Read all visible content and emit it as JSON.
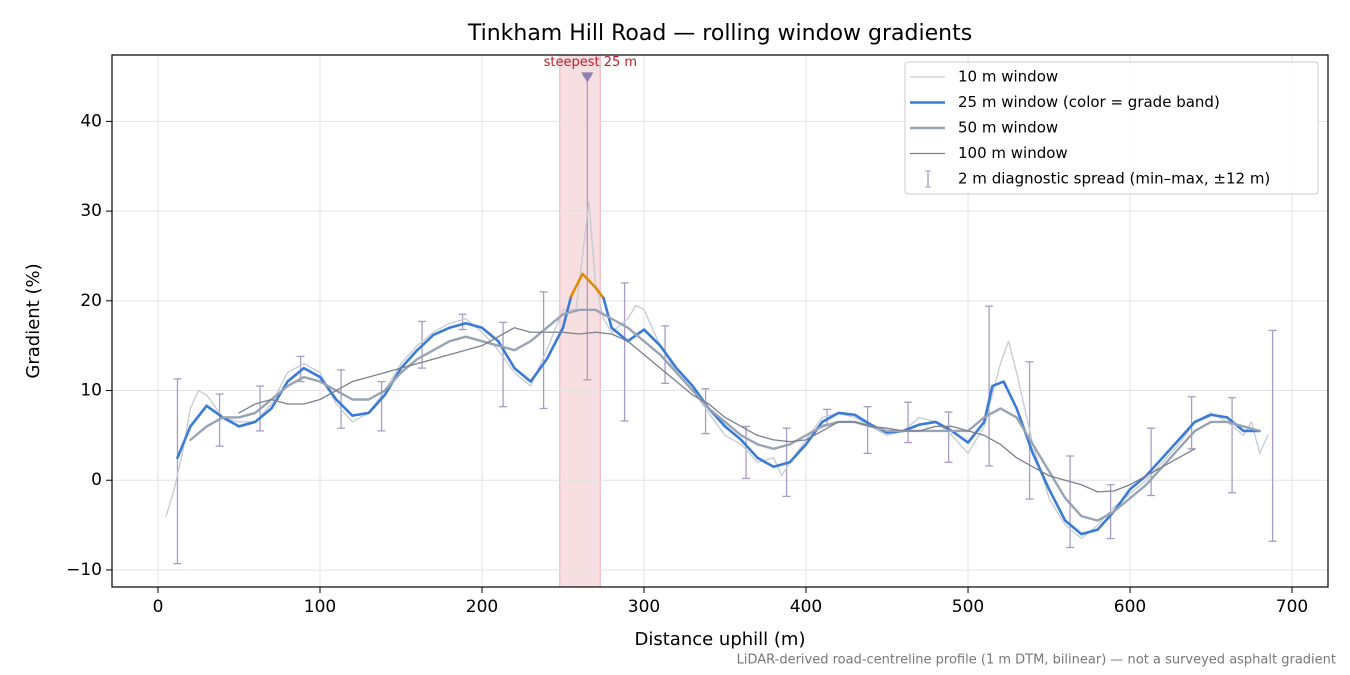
{
  "chart_data": {
    "type": "line",
    "title": "Tinkham Hill Road — rolling window gradients",
    "xlabel": "Distance uphill (m)",
    "ylabel": "Gradient (%)",
    "footnote": "LiDAR-derived road-centreline profile (1 m DTM, bilinear) — not a surveyed asphalt gradient",
    "xlim": [
      -28.4,
      722.2
    ],
    "ylim": [
      -11.9,
      47.4
    ],
    "xticks": [
      0,
      100,
      200,
      300,
      400,
      500,
      600,
      700
    ],
    "yticks": [
      {
        "value": -10,
        "label": "−10"
      },
      0,
      10,
      20,
      30,
      40
    ],
    "grid": true,
    "legend": "upper right",
    "span": {
      "from": 248,
      "to": 273,
      "color": "#e8a0a8"
    },
    "annotation": {
      "text": "steepest 25 m",
      "x": 265,
      "y": 44.8,
      "color": "#c0202a"
    },
    "series": [
      {
        "name": "10 m window",
        "color": "#c5cbd3",
        "width": 1.3,
        "x": [
          5,
          10,
          15,
          20,
          25,
          30,
          40,
          50,
          60,
          70,
          80,
          90,
          100,
          110,
          120,
          130,
          140,
          150,
          160,
          170,
          180,
          190,
          200,
          210,
          220,
          230,
          240,
          250,
          258,
          262,
          266,
          270,
          275,
          280,
          290,
          295,
          300,
          310,
          320,
          330,
          340,
          350,
          360,
          370,
          380,
          385,
          390,
          400,
          410,
          420,
          430,
          440,
          450,
          460,
          470,
          480,
          490,
          500,
          510,
          520,
          525,
          530,
          540,
          550,
          560,
          570,
          580,
          590,
          600,
          610,
          620,
          630,
          640,
          650,
          660,
          670,
          675,
          680,
          685
        ],
        "values": [
          -4,
          -1,
          3,
          8,
          10,
          9.5,
          7,
          6.5,
          6.5,
          8.5,
          12,
          13,
          12,
          8.5,
          6.5,
          7.5,
          10,
          13,
          15,
          16.5,
          17.5,
          18,
          16.5,
          14.5,
          12,
          10.5,
          14.5,
          19,
          19,
          25,
          31,
          22,
          18,
          16.5,
          18,
          19.5,
          19,
          15,
          12,
          10,
          7.5,
          5,
          4,
          2,
          2.5,
          0.5,
          2,
          4.5,
          7,
          7.5,
          7,
          6,
          5,
          5.5,
          7,
          6.5,
          5,
          3,
          6,
          13,
          15.5,
          12,
          4,
          -2,
          -5,
          -6.5,
          -5,
          -3,
          -1.5,
          0,
          2,
          4,
          6.5,
          7.5,
          6.5,
          5,
          6.5,
          3,
          5
        ]
      },
      {
        "name": "25 m window (color = grade band)",
        "color": "#3a7bd5",
        "width": 2.6,
        "grade_bands": [
          {
            "from": 20,
            "color": "#e08a00"
          }
        ],
        "x": [
          12,
          20,
          30,
          40,
          50,
          60,
          70,
          80,
          90,
          100,
          110,
          120,
          130,
          140,
          150,
          160,
          170,
          180,
          190,
          200,
          210,
          220,
          230,
          240,
          250,
          255,
          262,
          270,
          275,
          280,
          290,
          300,
          310,
          320,
          330,
          340,
          350,
          360,
          370,
          380,
          390,
          400,
          410,
          420,
          430,
          440,
          450,
          460,
          470,
          480,
          490,
          500,
          510,
          515,
          522,
          530,
          540,
          550,
          560,
          570,
          580,
          590,
          600,
          610,
          620,
          630,
          640,
          650,
          660,
          670,
          680
        ],
        "values": [
          2.5,
          6,
          8.3,
          7,
          6,
          6.5,
          8,
          11,
          12.5,
          11.5,
          9,
          7.2,
          7.5,
          9.5,
          12.5,
          14.5,
          16.2,
          17,
          17.5,
          17,
          15.5,
          12.5,
          11,
          13.5,
          17,
          20.5,
          23,
          21.5,
          20.3,
          17,
          15.5,
          16.8,
          15,
          12.5,
          10.5,
          8,
          6,
          4.5,
          2.5,
          1.5,
          2,
          4,
          6.5,
          7.5,
          7.3,
          6.2,
          5.3,
          5.5,
          6.2,
          6.5,
          5.5,
          4.2,
          6.5,
          10.5,
          11,
          8,
          3,
          -1,
          -4.5,
          -6,
          -5.5,
          -3.5,
          -1,
          0.5,
          2.5,
          4.5,
          6.5,
          7.3,
          7,
          5.5,
          5.5
        ]
      },
      {
        "name": "50 m window",
        "color": "#98a3b3",
        "width": 2.4,
        "x": [
          20,
          30,
          40,
          50,
          60,
          70,
          80,
          90,
          100,
          110,
          120,
          130,
          140,
          150,
          160,
          170,
          180,
          190,
          200,
          210,
          220,
          230,
          240,
          250,
          260,
          270,
          280,
          290,
          300,
          310,
          320,
          330,
          340,
          350,
          360,
          370,
          380,
          390,
          400,
          410,
          420,
          430,
          440,
          450,
          460,
          470,
          480,
          490,
          500,
          510,
          520,
          530,
          540,
          550,
          560,
          570,
          580,
          590,
          600,
          610,
          620,
          630,
          640,
          650,
          660,
          670,
          680
        ],
        "values": [
          4.5,
          6,
          7,
          7,
          7.5,
          9,
          10.5,
          11.5,
          11,
          10,
          9,
          9,
          10,
          12,
          13.5,
          14.5,
          15.5,
          16,
          15.5,
          15,
          14.5,
          15.5,
          17,
          18.5,
          19,
          19,
          18,
          17,
          15.5,
          14,
          12,
          10,
          8,
          6.5,
          5,
          4,
          3.5,
          4,
          5,
          6,
          6.5,
          6.5,
          6,
          5.5,
          5.5,
          5.5,
          5.5,
          5.5,
          5.5,
          7,
          8,
          7,
          4,
          1,
          -2,
          -4,
          -4.5,
          -3.5,
          -2,
          -0.5,
          1.5,
          3.5,
          5.5,
          6.5,
          6.5,
          6,
          5.5
        ]
      },
      {
        "name": "100 m window",
        "color": "#7a808c",
        "width": 1.3,
        "x": [
          50,
          60,
          70,
          80,
          90,
          100,
          110,
          120,
          130,
          140,
          150,
          160,
          170,
          180,
          190,
          200,
          210,
          220,
          230,
          240,
          250,
          260,
          270,
          280,
          290,
          300,
          310,
          320,
          330,
          340,
          350,
          360,
          370,
          380,
          390,
          400,
          410,
          420,
          430,
          440,
          450,
          460,
          470,
          480,
          490,
          500,
          510,
          520,
          530,
          540,
          550,
          560,
          570,
          580,
          590,
          600,
          610,
          620,
          630,
          640
        ],
        "values": [
          7.5,
          8.5,
          9,
          8.5,
          8.5,
          9,
          10,
          11,
          11.5,
          12,
          12.5,
          13,
          13.5,
          14,
          14.5,
          15,
          16,
          17,
          16.5,
          16.5,
          16.5,
          16.3,
          16.5,
          16.3,
          15.5,
          14,
          12.5,
          11,
          9.5,
          8.5,
          7,
          6,
          5,
          4.5,
          4.3,
          4.5,
          5.5,
          6.5,
          6.5,
          6,
          5.8,
          5.5,
          5.5,
          6,
          6,
          5.5,
          5,
          4,
          2.5,
          1.5,
          0.5,
          0,
          -0.5,
          -1.3,
          -1.2,
          -0.5,
          0.5,
          1.5,
          2.5,
          3.5
        ]
      }
    ],
    "error_bars": {
      "name": "2 m diagnostic spread (min–max, ±12 m)",
      "color": "#a99cc4",
      "x": [
        12,
        38,
        63,
        88,
        113,
        138,
        163,
        188,
        213,
        238,
        265,
        288,
        313,
        338,
        363,
        388,
        413,
        438,
        463,
        488,
        513,
        538,
        563,
        588,
        613,
        638,
        663,
        688
      ],
      "low": [
        -9.3,
        3.8,
        5.5,
        11,
        5.8,
        5.5,
        12.5,
        16.8,
        8.2,
        8,
        11.2,
        6.6,
        10.8,
        5.2,
        0.2,
        -1.8,
        6.2,
        3,
        4.2,
        2,
        1.6,
        -2.1,
        -7.5,
        -6.5,
        -1.7,
        3.5,
        -1.4,
        -6.8
      ],
      "high": [
        11.3,
        9.6,
        10.5,
        13.8,
        12.3,
        11,
        17.7,
        18.5,
        17.6,
        21,
        45,
        22,
        17.2,
        10.2,
        6,
        5.8,
        7.9,
        8.2,
        8.7,
        7.6,
        19.4,
        13.2,
        2.7,
        -0.5,
        5.8,
        9.3,
        9.2,
        16.7
      ]
    }
  }
}
